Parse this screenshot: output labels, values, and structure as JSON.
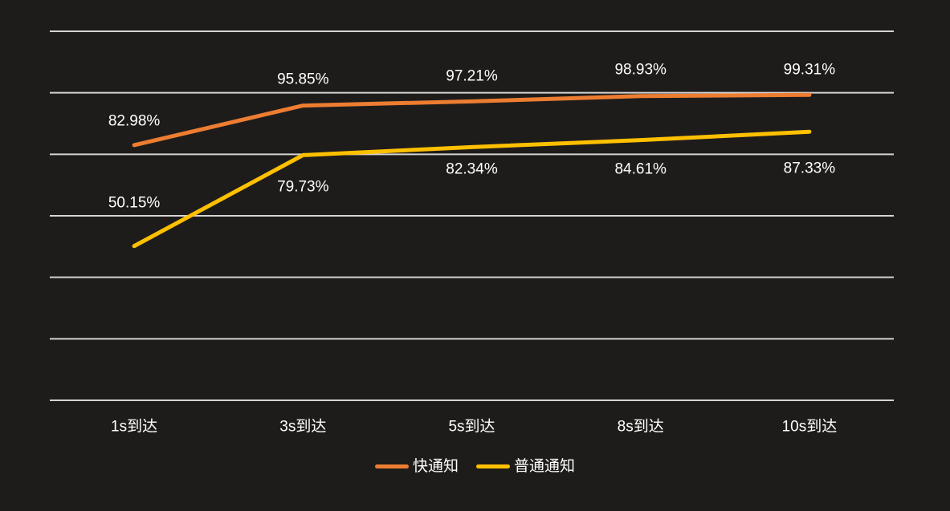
{
  "canvas": {
    "background_color": "#1e1c1b",
    "gridline_color": "#d6d4d2",
    "text_color": "#ffffff"
  },
  "chart_data": {
    "type": "line",
    "title": "",
    "xlabel": "",
    "ylabel": "",
    "categories": [
      "1s到达",
      "3s到达",
      "5s到达",
      "8s到达",
      "10s到达"
    ],
    "series": [
      {
        "name": "快通知",
        "color": "#ED7D31",
        "values": [
          82.98,
          95.85,
          97.21,
          98.93,
          99.31
        ],
        "labels": [
          "82.98%",
          "95.85%",
          "97.21%",
          "98.93%",
          "99.31%"
        ],
        "label_dy": [
          -30,
          -33,
          -31,
          -33,
          -31
        ]
      },
      {
        "name": "普通通知",
        "color": "#FFC000",
        "values": [
          50.15,
          79.73,
          82.34,
          84.61,
          87.33
        ],
        "labels": [
          "50.15%",
          "79.73%",
          "82.34%",
          "84.61%",
          "87.33%"
        ],
        "label_dy": [
          -54,
          40,
          28,
          36,
          46
        ]
      }
    ],
    "ylim": [
      0,
      120
    ],
    "grid_step": 20,
    "grid": true,
    "y_tick_labels_shown": false,
    "legend_position": "bottom",
    "line_width": 5
  }
}
